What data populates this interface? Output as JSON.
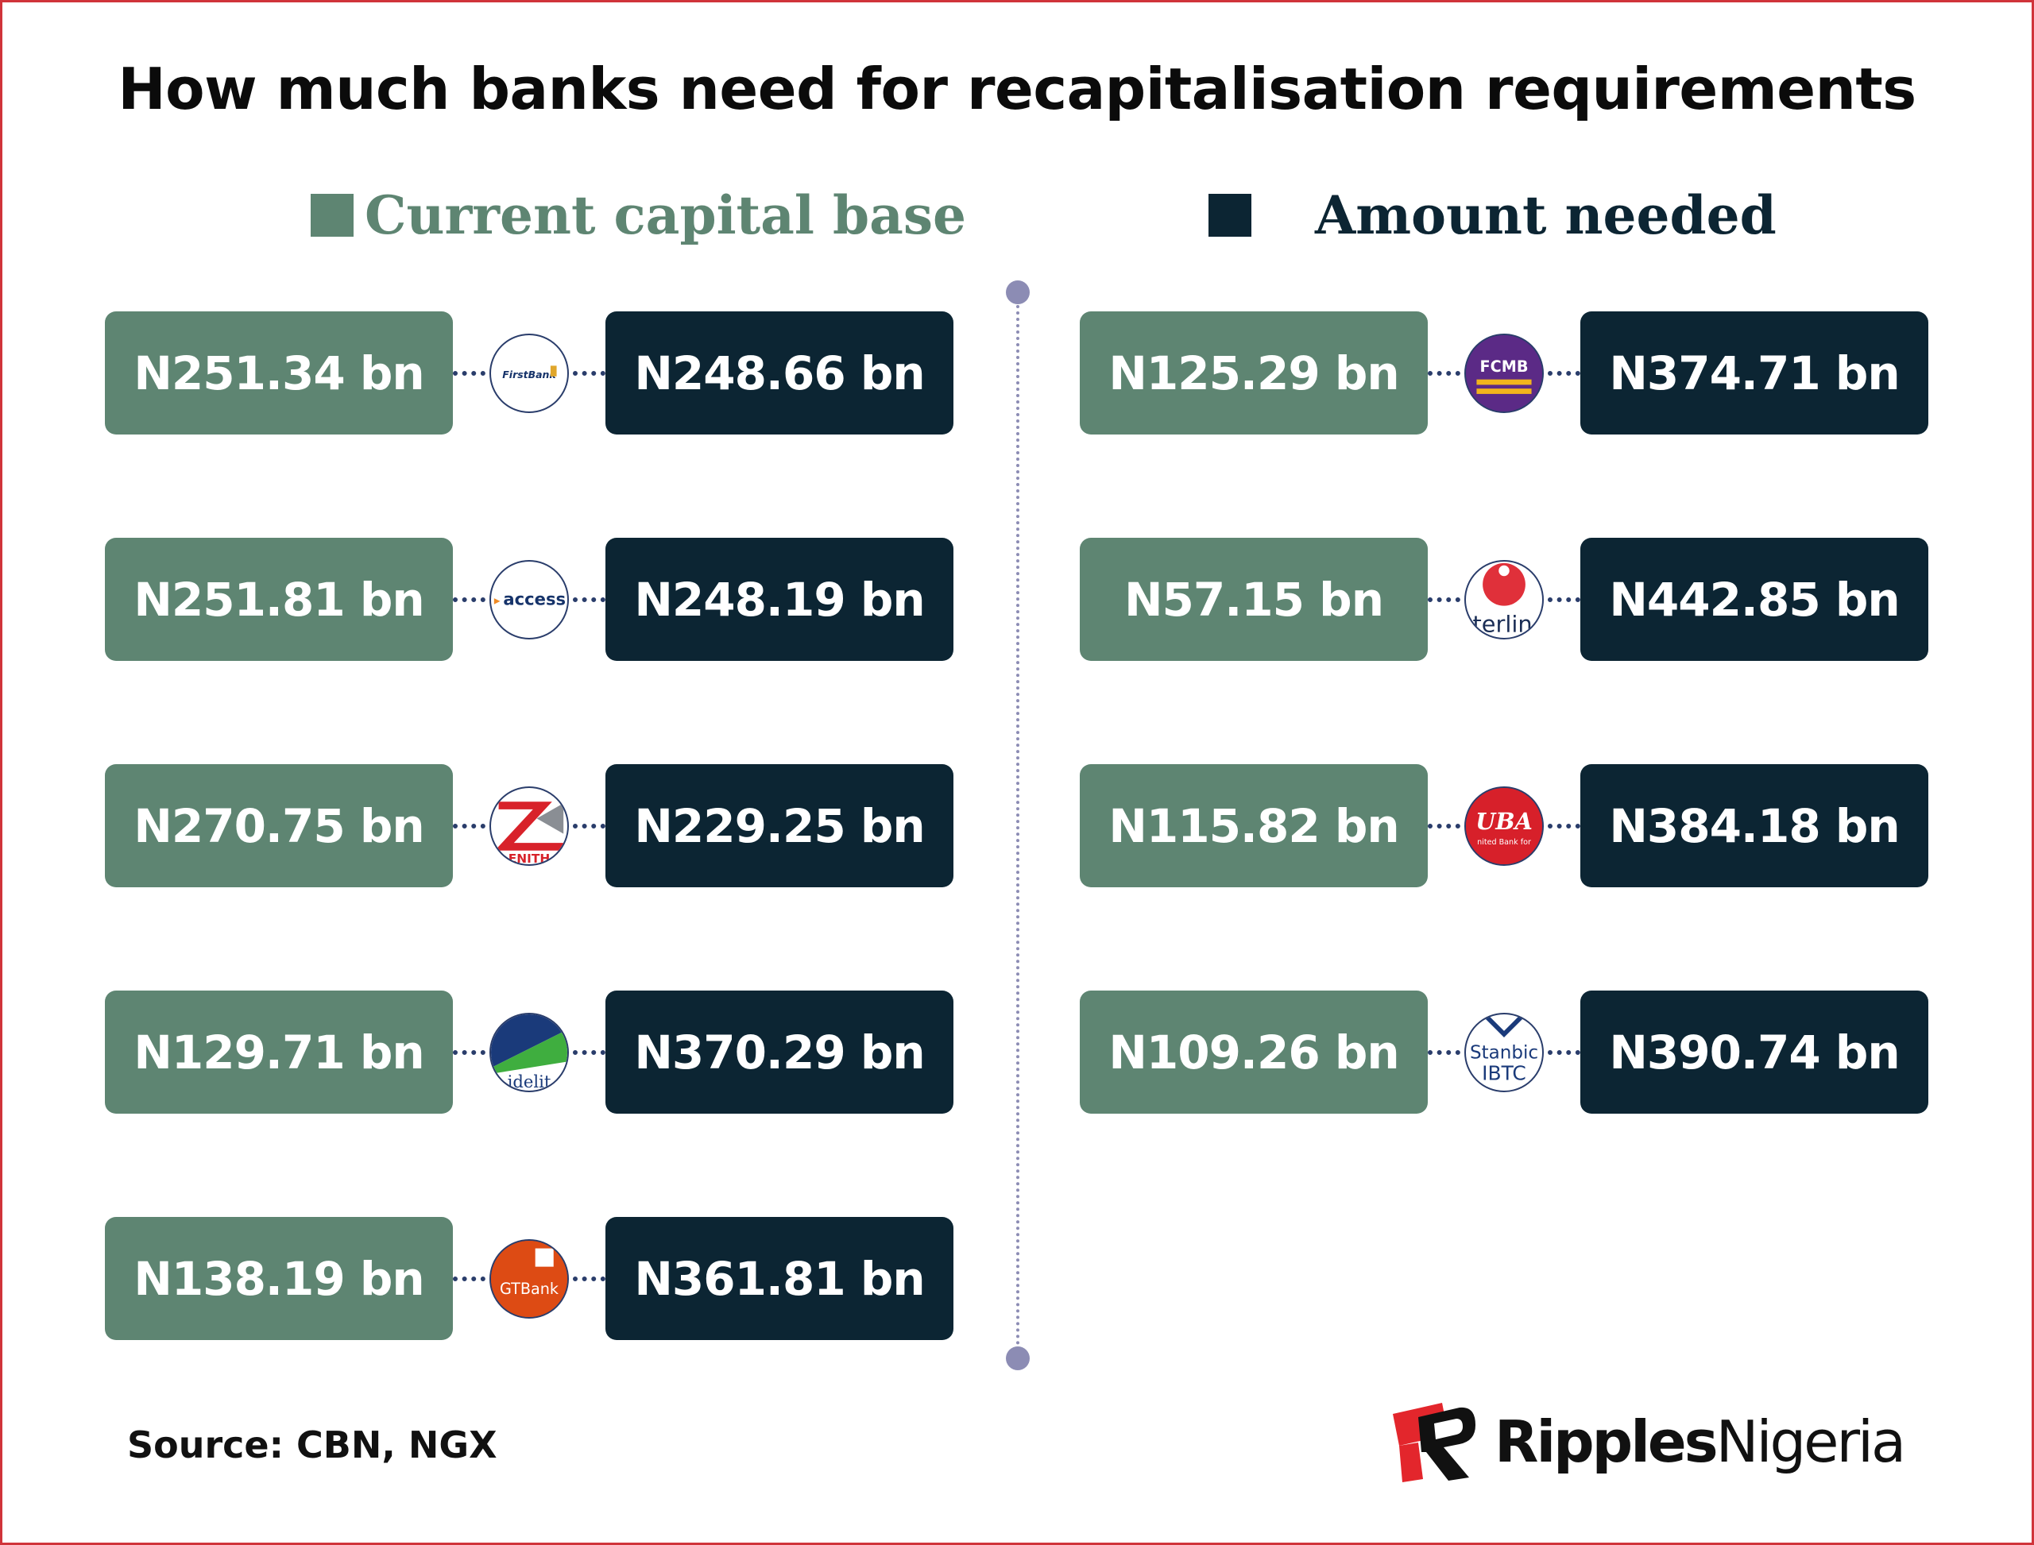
{
  "title": "How much banks need for recapitalisation requirements",
  "legend": [
    {
      "label": "Current capital base",
      "color": "#5e8572"
    },
    {
      "label": "Amount needed",
      "color": "#0c2533"
    }
  ],
  "source": "Source: CBN, NGX",
  "brand": {
    "part1": "Ripples",
    "part2": "Nigeria",
    "logo_icon": "ripples-r-logo-icon"
  },
  "chart_data": {
    "type": "table",
    "title": "How much banks need for recapitalisation requirements",
    "columns": [
      "Current capital base",
      "Amount needed"
    ],
    "unit": "N bn",
    "rows": [
      {
        "bank_logo": "firstbank-logo-icon",
        "logo_text": "FirstBank",
        "current": 251.34,
        "needed": 248.66,
        "current_label": "N251.34 bn",
        "needed_label": "N248.66 bn"
      },
      {
        "bank_logo": "access-logo-icon",
        "logo_text": "access",
        "current": 251.81,
        "needed": 248.19,
        "current_label": "N251.81 bn",
        "needed_label": "N248.19 bn"
      },
      {
        "bank_logo": "zenith-logo-icon",
        "logo_text": "ENITH",
        "current": 270.75,
        "needed": 229.25,
        "current_label": "N270.75 bn",
        "needed_label": "N229.25 bn"
      },
      {
        "bank_logo": "fidelity-logo-icon",
        "logo_text": "idelit",
        "current": 129.71,
        "needed": 370.29,
        "current_label": "N129.71 bn",
        "needed_label": "N370.29 bn"
      },
      {
        "bank_logo": "gtbank-logo-icon",
        "logo_text": "GTBank",
        "current": 138.19,
        "needed": 361.81,
        "current_label": "N138.19 bn",
        "needed_label": "N361.81 bn"
      },
      {
        "bank_logo": "fcmb-logo-icon",
        "logo_text": "FCMB",
        "current": 125.29,
        "needed": 374.71,
        "current_label": "N125.29 bn",
        "needed_label": "N374.71 bn"
      },
      {
        "bank_logo": "sterling-logo-icon",
        "logo_text": "terlin",
        "current": 57.15,
        "needed": 442.85,
        "current_label": "N57.15 bn",
        "needed_label": "N442.85 bn"
      },
      {
        "bank_logo": "uba-logo-icon",
        "logo_text": "UBA",
        "sub_text": "nited Bank for",
        "current": 115.82,
        "needed": 384.18,
        "current_label": "N115.82 bn",
        "needed_label": "N384.18 bn"
      },
      {
        "bank_logo": "stanbic-logo-icon",
        "logo_text": "Stanbic",
        "sub_text": "IBTC",
        "current": 109.26,
        "needed": 390.74,
        "current_label": "N109.26 bn",
        "needed_label": "N390.74 bn"
      }
    ]
  }
}
